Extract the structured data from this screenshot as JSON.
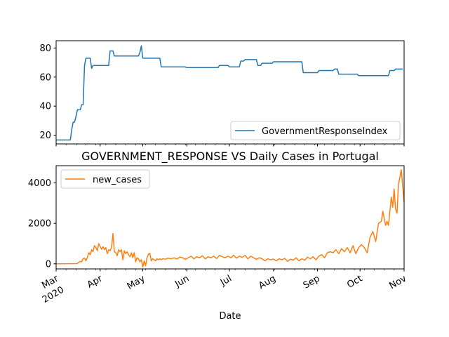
{
  "chart_data": [
    {
      "type": "line",
      "title": "",
      "xlabel": "",
      "ylabel": "",
      "ylim": [
        14,
        85
      ],
      "yticks": [
        20,
        40,
        60,
        80
      ],
      "legend": {
        "placement": "lower-right"
      },
      "series": [
        {
          "name": "GovernmentResponseIndex",
          "color": "#1f77b4",
          "points": [
            [
              "2020-03-01",
              16.7
            ],
            [
              "2020-03-10",
              16.7
            ],
            [
              "2020-03-11",
              16.7
            ],
            [
              "2020-03-12",
              24
            ],
            [
              "2020-03-13",
              29
            ],
            [
              "2020-03-14",
              29
            ],
            [
              "2020-03-15",
              33
            ],
            [
              "2020-03-16",
              37.5
            ],
            [
              "2020-03-18",
              37.5
            ],
            [
              "2020-03-19",
              41
            ],
            [
              "2020-03-20",
              41
            ],
            [
              "2020-03-21",
              68
            ],
            [
              "2020-03-22",
              73
            ],
            [
              "2020-03-25",
              73
            ],
            [
              "2020-03-26",
              66
            ],
            [
              "2020-03-27",
              68
            ],
            [
              "2020-04-07",
              68
            ],
            [
              "2020-04-08",
              78
            ],
            [
              "2020-04-10",
              78
            ],
            [
              "2020-04-11",
              74.5
            ],
            [
              "2020-04-28",
              74.5
            ],
            [
              "2020-04-29",
              77
            ],
            [
              "2020-04-30",
              81.5
            ],
            [
              "2020-05-01",
              73
            ],
            [
              "2020-05-13",
              73
            ],
            [
              "2020-05-14",
              67
            ],
            [
              "2020-05-31",
              67
            ],
            [
              "2020-06-01",
              66.5
            ],
            [
              "2020-06-23",
              66.5
            ],
            [
              "2020-06-24",
              68
            ],
            [
              "2020-06-30",
              68
            ],
            [
              "2020-07-01",
              67
            ],
            [
              "2020-07-08",
              67
            ],
            [
              "2020-07-09",
              71
            ],
            [
              "2020-07-11",
              71
            ],
            [
              "2020-07-12",
              72
            ],
            [
              "2020-07-20",
              72
            ],
            [
              "2020-07-21",
              68
            ],
            [
              "2020-07-23",
              68
            ],
            [
              "2020-07-24",
              69.5
            ],
            [
              "2020-07-31",
              69.5
            ],
            [
              "2020-08-01",
              70.5
            ],
            [
              "2020-08-21",
              70.5
            ],
            [
              "2020-08-22",
              63
            ],
            [
              "2020-09-01",
              63
            ],
            [
              "2020-09-02",
              64.5
            ],
            [
              "2020-09-12",
              64.5
            ],
            [
              "2020-09-13",
              65.5
            ],
            [
              "2020-09-15",
              65.5
            ],
            [
              "2020-09-16",
              62
            ],
            [
              "2020-09-29",
              62
            ],
            [
              "2020-09-30",
              61
            ],
            [
              "2020-10-21",
              61
            ],
            [
              "2020-10-22",
              64.5
            ],
            [
              "2020-10-25",
              64.5
            ],
            [
              "2020-10-26",
              65.5
            ],
            [
              "2020-10-31",
              65.5
            ]
          ]
        }
      ]
    },
    {
      "type": "line",
      "title": "GOVERNMENT_RESPONSE VS Daily Cases in Portugal",
      "xlabel": "Date",
      "ylabel": "",
      "ylim": [
        -250,
        4850
      ],
      "yticks": [
        0,
        2000,
        4000
      ],
      "xlim": [
        "2020-03-01",
        "2020-11-01"
      ],
      "xticks": [
        {
          "date": "2020-03-01",
          "label": "Mar",
          "label2": "2020"
        },
        {
          "date": "2020-04-01",
          "label": "Apr"
        },
        {
          "date": "2020-05-01",
          "label": "May"
        },
        {
          "date": "2020-06-01",
          "label": "Jun"
        },
        {
          "date": "2020-07-01",
          "label": "Jul"
        },
        {
          "date": "2020-08-01",
          "label": "Aug"
        },
        {
          "date": "2020-09-01",
          "label": "Sep"
        },
        {
          "date": "2020-10-01",
          "label": "Oct"
        },
        {
          "date": "2020-11-01",
          "label": "Nov"
        }
      ],
      "legend": {
        "placement": "upper-left"
      },
      "series": [
        {
          "name": "new_cases",
          "color": "#ff7f0e",
          "points": [
            [
              "2020-03-01",
              0
            ],
            [
              "2020-03-10",
              5
            ],
            [
              "2020-03-15",
              10
            ],
            [
              "2020-03-16",
              20
            ],
            [
              "2020-03-17",
              80
            ],
            [
              "2020-03-18",
              120
            ],
            [
              "2020-03-19",
              100
            ],
            [
              "2020-03-20",
              260
            ],
            [
              "2020-03-21",
              280
            ],
            [
              "2020-03-22",
              150
            ],
            [
              "2020-03-23",
              320
            ],
            [
              "2020-03-24",
              550
            ],
            [
              "2020-03-25",
              450
            ],
            [
              "2020-03-26",
              700
            ],
            [
              "2020-03-27",
              600
            ],
            [
              "2020-03-28",
              900
            ],
            [
              "2020-03-29",
              800
            ],
            [
              "2020-03-30",
              650
            ],
            [
              "2020-03-31",
              1000
            ],
            [
              "2020-04-01",
              850
            ],
            [
              "2020-04-02",
              720
            ],
            [
              "2020-04-03",
              850
            ],
            [
              "2020-04-04",
              700
            ],
            [
              "2020-04-05",
              800
            ],
            [
              "2020-04-06",
              500
            ],
            [
              "2020-04-07",
              700
            ],
            [
              "2020-04-08",
              650
            ],
            [
              "2020-04-09",
              800
            ],
            [
              "2020-04-10",
              1500
            ],
            [
              "2020-04-11",
              600
            ],
            [
              "2020-04-12",
              550
            ],
            [
              "2020-04-13",
              400
            ],
            [
              "2020-04-14",
              700
            ],
            [
              "2020-04-15",
              600
            ],
            [
              "2020-04-16",
              700
            ],
            [
              "2020-04-17",
              200
            ],
            [
              "2020-04-18",
              650
            ],
            [
              "2020-04-19",
              500
            ],
            [
              "2020-04-20",
              600
            ],
            [
              "2020-04-21",
              450
            ],
            [
              "2020-04-22",
              350
            ],
            [
              "2020-04-23",
              550
            ],
            [
              "2020-04-24",
              300
            ],
            [
              "2020-04-25",
              550
            ],
            [
              "2020-04-26",
              100
            ],
            [
              "2020-04-27",
              300
            ],
            [
              "2020-04-28",
              250
            ],
            [
              "2020-04-29",
              100
            ],
            [
              "2020-04-30",
              200
            ],
            [
              "2020-05-01",
              -160
            ],
            [
              "2020-05-02",
              150
            ],
            [
              "2020-05-03",
              -100
            ],
            [
              "2020-05-04",
              300
            ],
            [
              "2020-05-05",
              480
            ],
            [
              "2020-05-06",
              520
            ],
            [
              "2020-05-07",
              150
            ],
            [
              "2020-05-08",
              250
            ],
            [
              "2020-05-09",
              200
            ],
            [
              "2020-05-10",
              150
            ],
            [
              "2020-05-11",
              250
            ],
            [
              "2020-05-12",
              200
            ],
            [
              "2020-05-13",
              250
            ],
            [
              "2020-05-14",
              200
            ],
            [
              "2020-05-15",
              250
            ],
            [
              "2020-05-17",
              230
            ],
            [
              "2020-05-19",
              280
            ],
            [
              "2020-05-21",
              250
            ],
            [
              "2020-05-23",
              300
            ],
            [
              "2020-05-25",
              240
            ],
            [
              "2020-05-27",
              330
            ],
            [
              "2020-05-29",
              300
            ],
            [
              "2020-05-31",
              220
            ],
            [
              "2020-06-02",
              300
            ],
            [
              "2020-06-04",
              380
            ],
            [
              "2020-06-06",
              250
            ],
            [
              "2020-06-08",
              350
            ],
            [
              "2020-06-10",
              300
            ],
            [
              "2020-06-12",
              400
            ],
            [
              "2020-06-14",
              250
            ],
            [
              "2020-06-16",
              350
            ],
            [
              "2020-06-18",
              300
            ],
            [
              "2020-06-20",
              380
            ],
            [
              "2020-06-22",
              260
            ],
            [
              "2020-06-24",
              420
            ],
            [
              "2020-06-26",
              350
            ],
            [
              "2020-06-28",
              300
            ],
            [
              "2020-06-30",
              380
            ],
            [
              "2020-07-02",
              300
            ],
            [
              "2020-07-04",
              420
            ],
            [
              "2020-07-06",
              280
            ],
            [
              "2020-07-08",
              380
            ],
            [
              "2020-07-10",
              320
            ],
            [
              "2020-07-12",
              420
            ],
            [
              "2020-07-14",
              250
            ],
            [
              "2020-07-16",
              380
            ],
            [
              "2020-07-18",
              300
            ],
            [
              "2020-07-20",
              220
            ],
            [
              "2020-07-22",
              300
            ],
            [
              "2020-07-24",
              250
            ],
            [
              "2020-07-26",
              150
            ],
            [
              "2020-07-28",
              250
            ],
            [
              "2020-07-30",
              200
            ],
            [
              "2020-08-01",
              230
            ],
            [
              "2020-08-03",
              150
            ],
            [
              "2020-08-05",
              250
            ],
            [
              "2020-08-07",
              200
            ],
            [
              "2020-08-09",
              270
            ],
            [
              "2020-08-11",
              120
            ],
            [
              "2020-08-13",
              230
            ],
            [
              "2020-08-15",
              180
            ],
            [
              "2020-08-17",
              300
            ],
            [
              "2020-08-19",
              150
            ],
            [
              "2020-08-21",
              250
            ],
            [
              "2020-08-23",
              180
            ],
            [
              "2020-08-25",
              330
            ],
            [
              "2020-08-27",
              250
            ],
            [
              "2020-08-29",
              350
            ],
            [
              "2020-08-31",
              200
            ],
            [
              "2020-09-02",
              380
            ],
            [
              "2020-09-04",
              450
            ],
            [
              "2020-09-06",
              300
            ],
            [
              "2020-09-08",
              550
            ],
            [
              "2020-09-10",
              600
            ],
            [
              "2020-09-12",
              550
            ],
            [
              "2020-09-14",
              700
            ],
            [
              "2020-09-16",
              500
            ],
            [
              "2020-09-18",
              750
            ],
            [
              "2020-09-20",
              600
            ],
            [
              "2020-09-22",
              800
            ],
            [
              "2020-09-24",
              550
            ],
            [
              "2020-09-26",
              900
            ],
            [
              "2020-09-28",
              500
            ],
            [
              "2020-09-30",
              800
            ],
            [
              "2020-10-02",
              950
            ],
            [
              "2020-10-04",
              800
            ],
            [
              "2020-10-06",
              550
            ],
            [
              "2020-10-08",
              1300
            ],
            [
              "2020-10-10",
              1600
            ],
            [
              "2020-10-12",
              1100
            ],
            [
              "2020-10-14",
              2000
            ],
            [
              "2020-10-16",
              2100
            ],
            [
              "2020-10-17",
              2600
            ],
            [
              "2020-10-19",
              1900
            ],
            [
              "2020-10-20",
              2100
            ],
            [
              "2020-10-21",
              1900
            ],
            [
              "2020-10-23",
              3300
            ],
            [
              "2020-10-24",
              2800
            ],
            [
              "2020-10-25",
              3700
            ],
            [
              "2020-10-26",
              2700
            ],
            [
              "2020-10-27",
              2500
            ],
            [
              "2020-10-28",
              3900
            ],
            [
              "2020-10-30",
              4650
            ],
            [
              "2020-11-01",
              3050
            ]
          ]
        }
      ]
    }
  ]
}
